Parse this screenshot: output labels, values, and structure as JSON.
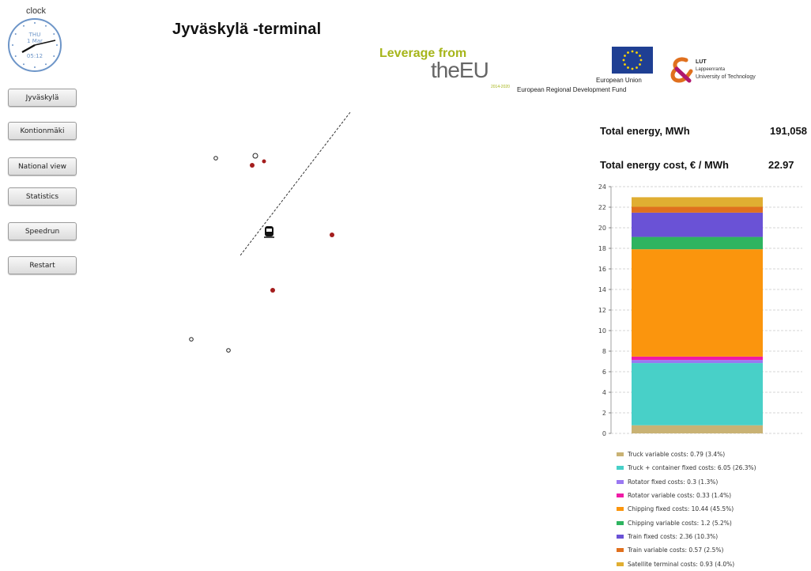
{
  "clock": {
    "label": "clock",
    "day": "THU",
    "date": "1 Mar",
    "time": "05:12",
    "color": "#6d95c8"
  },
  "nav": {
    "buttons": [
      {
        "id": "jyvaskyla",
        "label": "Jyväskylä"
      },
      {
        "id": "kontionmaki",
        "label": "Kontionmäki"
      },
      {
        "id": "national-view",
        "label": "National view"
      },
      {
        "id": "statistics",
        "label": "Statistics"
      },
      {
        "id": "speedrun",
        "label": "Speedrun"
      },
      {
        "id": "restart",
        "label": "Restart"
      }
    ]
  },
  "page_title": "Jyväskylä -terminal",
  "logos": {
    "leverage_line1": "Leverage from",
    "leverage_line2": "theEU",
    "leverage_years": "2014-2020",
    "eu_union": "European Union",
    "eu_fund": "European Regional Development Fund",
    "lut_line1": "LUT",
    "lut_line2": "Lappeenranta",
    "lut_line3": "University of Technology",
    "eu_blue": "#1f3f93",
    "eu_gold": "#ffd700",
    "leverage_green": "#a6b51a"
  },
  "map": {
    "hollow_marker_color": "#222222",
    "filled_marker_color": "#a41d1d",
    "line_color": "#333333"
  },
  "stats": {
    "total_energy_label": "Total energy, MWh",
    "total_energy_value": "191,058",
    "total_cost_label": "Total energy cost, € / MWh",
    "total_cost_value": "22.97"
  },
  "chart_data": {
    "type": "bar",
    "stacked": true,
    "ylim": [
      0,
      24
    ],
    "yticks": [
      "0",
      "2",
      "4",
      "6",
      "8",
      "10",
      "12",
      "14",
      "16",
      "18",
      "20",
      "22",
      "24"
    ],
    "grid": true,
    "series": [
      {
        "name": "Truck variable costs: 0.79 (3.4%)",
        "value": 0.79,
        "color": "#c9b274"
      },
      {
        "name": "Truck + container fixed costs: 6.05 (26.3%)",
        "value": 6.05,
        "color": "#48d0c8"
      },
      {
        "name": "Rotator fixed costs: 0.3 (1.3%)",
        "value": 0.3,
        "color": "#9a78f2"
      },
      {
        "name": "Rotator variable costs: 0.33 (1.4%)",
        "value": 0.33,
        "color": "#f01aa6"
      },
      {
        "name": "Chipping fixed costs: 10.44 (45.5%)",
        "value": 10.44,
        "color": "#fb950d"
      },
      {
        "name": "Chipping variable costs: 1.2 (5.2%)",
        "value": 1.2,
        "color": "#2eb460"
      },
      {
        "name": "Train fixed costs: 2.36 (10.3%)",
        "value": 2.36,
        "color": "#6a52d6"
      },
      {
        "name": "Train variable costs: 0.57 (2.5%)",
        "value": 0.57,
        "color": "#e0701e"
      },
      {
        "name": "Satellite terminal costs: 0.93 (4.0%)",
        "value": 0.93,
        "color": "#e0ae32"
      }
    ]
  }
}
